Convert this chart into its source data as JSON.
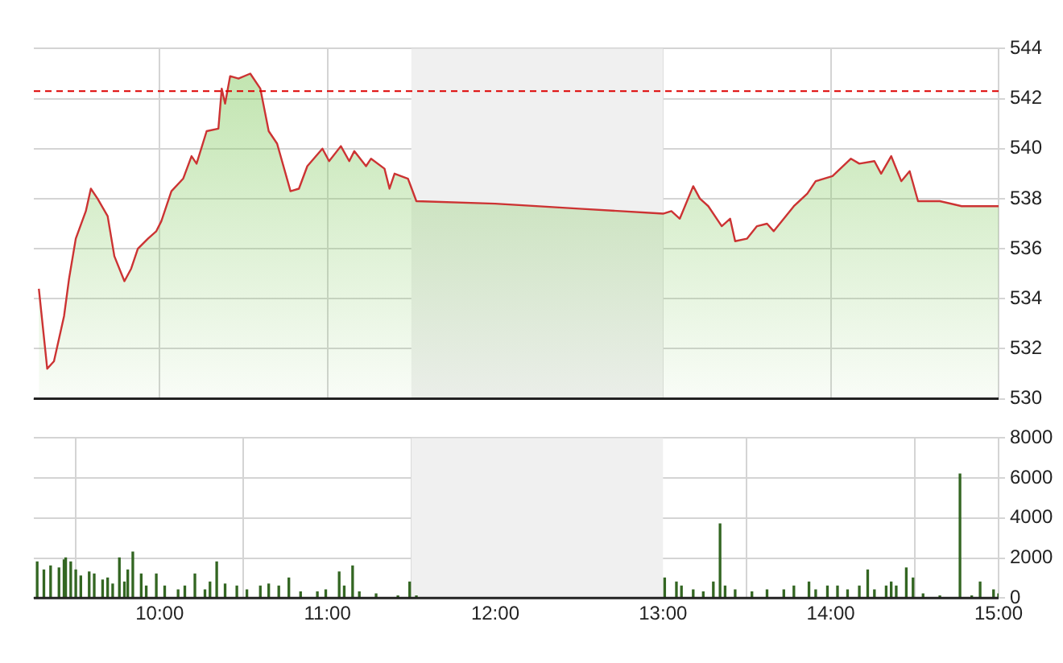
{
  "chart_data": [
    {
      "type": "area",
      "series": [
        {
          "color": "#cc3333",
          "x": [
            9.28,
            9.33,
            9.37,
            9.43,
            9.46,
            9.5,
            9.56,
            9.59,
            9.63,
            9.69,
            9.73,
            9.79,
            9.83,
            9.87,
            9.93,
            9.98,
            10.01,
            10.07,
            10.14,
            10.19,
            10.22,
            10.28,
            10.35,
            10.37,
            10.39,
            10.42,
            10.47,
            10.54,
            10.6,
            10.65,
            10.7,
            10.78,
            10.83,
            10.88,
            10.97,
            11.01,
            11.08,
            11.13,
            11.16,
            11.23,
            11.26,
            11.34,
            11.37,
            11.4,
            11.48,
            11.53,
            12.0,
            12.5,
            13.0,
            13.05,
            13.1,
            13.18,
            13.22,
            13.27,
            13.35,
            13.4,
            13.43,
            13.5,
            13.56,
            13.62,
            13.66,
            13.72,
            13.78,
            13.86,
            13.91,
            14.01,
            14.12,
            14.17,
            14.26,
            14.3,
            14.36,
            14.42,
            14.47,
            14.52,
            14.65,
            14.78,
            15.0
          ],
          "values": [
            534.4,
            531.2,
            531.5,
            533.3,
            534.8,
            536.4,
            537.5,
            538.4,
            538.0,
            537.3,
            535.7,
            534.7,
            535.2,
            536.0,
            536.4,
            536.7,
            537.1,
            538.3,
            538.8,
            539.7,
            539.4,
            540.7,
            540.8,
            542.4,
            541.8,
            542.9,
            542.8,
            543.0,
            542.4,
            540.7,
            540.2,
            538.3,
            538.4,
            539.3,
            540.0,
            539.5,
            540.1,
            539.5,
            539.9,
            539.3,
            539.6,
            539.2,
            538.4,
            539.0,
            538.8,
            537.9,
            537.8,
            537.6,
            537.4,
            537.5,
            537.2,
            538.5,
            538.0,
            537.7,
            536.9,
            537.2,
            536.3,
            536.4,
            536.9,
            537.0,
            536.7,
            537.2,
            537.7,
            538.2,
            538.7,
            538.9,
            539.6,
            539.4,
            539.5,
            539.0,
            539.7,
            538.7,
            539.1,
            537.9,
            537.9,
            537.7,
            537.7
          ]
        }
      ],
      "xlim": [
        9.25,
        15.0
      ],
      "xticks": [
        {
          "value": 10,
          "label": null
        },
        {
          "value": 11,
          "label": null
        },
        {
          "value": 12,
          "label": null
        },
        {
          "value": 13,
          "label": null
        },
        {
          "value": 14,
          "label": null
        },
        {
          "value": 15,
          "label": null
        }
      ],
      "ylim": [
        530,
        544
      ],
      "yticks": [
        530,
        532,
        534,
        536,
        538,
        540,
        542,
        544
      ],
      "grid": true,
      "tick_labels": "y",
      "bands": [
        {
          "axis": "x",
          "from": 11.5,
          "to": 13.0,
          "color": "#f0f0f0"
        }
      ],
      "ref_lines": [
        {
          "axis": "y",
          "value": 542.3,
          "color": "#dd0000",
          "line_style": "dashed"
        }
      ]
    },
    {
      "type": "bar",
      "series": [
        {
          "color": "#336622",
          "x": [
            9.27,
            9.31,
            9.35,
            9.4,
            9.43,
            9.44,
            9.47,
            9.5,
            9.53,
            9.58,
            9.61,
            9.66,
            9.69,
            9.72,
            9.76,
            9.79,
            9.81,
            9.84,
            9.89,
            9.92,
            9.98,
            10.03,
            10.11,
            10.15,
            10.21,
            10.27,
            10.3,
            10.34,
            10.39,
            10.46,
            10.52,
            10.6,
            10.65,
            10.71,
            10.77,
            10.84,
            10.94,
            10.99,
            11.07,
            11.1,
            11.15,
            11.19,
            11.29,
            11.42,
            11.49,
            11.53,
            13.01,
            13.08,
            13.11,
            13.18,
            13.24,
            13.3,
            13.34,
            13.37,
            13.43,
            13.53,
            13.62,
            13.72,
            13.78,
            13.87,
            13.91,
            13.98,
            14.04,
            14.1,
            14.17,
            14.22,
            14.26,
            14.33,
            14.36,
            14.39,
            14.45,
            14.49,
            14.55,
            14.65,
            14.77,
            14.84,
            14.89,
            14.97,
            15.0
          ],
          "values": [
            1800,
            1400,
            1600,
            1500,
            1900,
            2000,
            1800,
            1400,
            1100,
            1300,
            1200,
            900,
            1000,
            700,
            2000,
            800,
            1400,
            2300,
            1200,
            600,
            1200,
            600,
            400,
            600,
            1200,
            400,
            800,
            1800,
            700,
            600,
            400,
            600,
            700,
            600,
            1000,
            300,
            300,
            400,
            1300,
            600,
            1600,
            300,
            200,
            100,
            800,
            100,
            1000,
            800,
            600,
            400,
            300,
            800,
            3700,
            600,
            400,
            300,
            400,
            400,
            600,
            800,
            400,
            600,
            600,
            400,
            600,
            1400,
            400,
            600,
            800,
            600,
            1500,
            1000,
            200,
            100,
            6200,
            100,
            800,
            400,
            200
          ]
        }
      ],
      "xlim": [
        9.25,
        15.0
      ],
      "xticks": [
        {
          "value": 10,
          "label": "10:00"
        },
        {
          "value": 11,
          "label": "11:00"
        },
        {
          "value": 12,
          "label": "12:00"
        },
        {
          "value": 13,
          "label": "13:00"
        },
        {
          "value": 14,
          "label": "14:00"
        },
        {
          "value": 15,
          "label": "15:00"
        }
      ],
      "ylim": [
        0,
        8000
      ],
      "yticks": [
        0,
        2000,
        4000,
        6000,
        8000
      ],
      "grid": true,
      "bands": [
        {
          "axis": "x",
          "from": 11.5,
          "to": 13.0,
          "color": "#f0f0f0"
        }
      ]
    }
  ]
}
